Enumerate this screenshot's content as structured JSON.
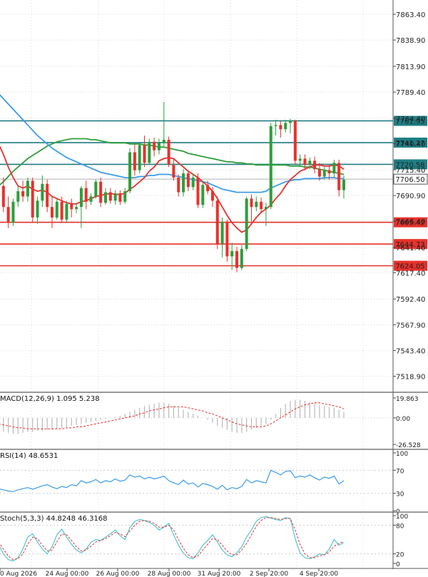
{
  "chart_data": {
    "type": "candlestick",
    "grid": true,
    "colors": {
      "bull": "#2e9e3b",
      "bear": "#e8312b",
      "ma_fast": "#e8312b",
      "ma_mid": "#3a9be8",
      "ma_slow": "#2e9e3b",
      "level_resist": "#1f7d84",
      "level_support": "#e8312b",
      "macd_hist": "#b9b9b9",
      "macd_signal": "#e8312b",
      "rsi": "#3a9be8",
      "stoch_main": "#4fc6d4",
      "stoch_signal": "#e8312b"
    },
    "x_labels": [
      "0 Aug 2026",
      "24 Aug 00:00",
      "26 Aug 00:00",
      "28 Aug 00:00",
      "31 Aug 20:00",
      "2 Sep 20:00",
      "4 Sep 20:00"
    ],
    "price_axis": {
      "ylim": [
        7505,
        7877
      ],
      "ticks": [
        "7863.40",
        "7838.90",
        "7813.90",
        "7789.40",
        "7764.40",
        "7740.40",
        "7715.40",
        "7690.90",
        "7666.40",
        "7641.40",
        "7617.40",
        "7592.40",
        "7567.90",
        "7543.40",
        "7518.90"
      ]
    },
    "price_ticks_values": [
      7863.4,
      7838.9,
      7813.9,
      7789.4,
      7764.4,
      7740.4,
      7715.4,
      7690.9,
      7666.4,
      7641.4,
      7617.4,
      7592.4,
      7567.9,
      7543.4,
      7518.9
    ],
    "levels": [
      {
        "label": "7761.95",
        "value": 7761.95,
        "kind": "resist"
      },
      {
        "label": "7741.27",
        "value": 7741.27,
        "kind": "resist"
      },
      {
        "label": "7720.58",
        "value": 7720.58,
        "kind": "resist"
      },
      {
        "label": "7665.42",
        "value": 7665.42,
        "kind": "support"
      },
      {
        "label": "7644.73",
        "value": 7644.73,
        "kind": "support"
      },
      {
        "label": "7624.05",
        "value": 7624.05,
        "kind": "support"
      }
    ],
    "current_price": {
      "label": "7706.50",
      "value": 7706.5
    },
    "candles": [
      [
        7718,
        7725,
        7695,
        7700
      ],
      [
        7700,
        7708,
        7675,
        7680
      ],
      [
        7680,
        7690,
        7660,
        7665
      ],
      [
        7665,
        7688,
        7662,
        7685
      ],
      [
        7685,
        7700,
        7680,
        7695
      ],
      [
        7695,
        7705,
        7685,
        7690
      ],
      [
        7690,
        7708,
        7685,
        7705
      ],
      [
        7705,
        7708,
        7665,
        7670
      ],
      [
        7670,
        7690,
        7664,
        7686
      ],
      [
        7686,
        7710,
        7680,
        7702
      ],
      [
        7702,
        7706,
        7675,
        7680
      ],
      [
        7680,
        7690,
        7660,
        7670
      ],
      [
        7670,
        7688,
        7668,
        7685
      ],
      [
        7685,
        7690,
        7665,
        7668
      ],
      [
        7668,
        7686,
        7665,
        7683
      ],
      [
        7683,
        7688,
        7670,
        7678
      ],
      [
        7678,
        7684,
        7674,
        7680
      ],
      [
        7680,
        7700,
        7660,
        7698
      ],
      [
        7698,
        7705,
        7678,
        7685
      ],
      [
        7685,
        7693,
        7682,
        7690
      ],
      [
        7690,
        7706,
        7688,
        7704
      ],
      [
        7704,
        7708,
        7680,
        7684
      ],
      [
        7684,
        7698,
        7682,
        7694
      ],
      [
        7694,
        7698,
        7683,
        7686
      ],
      [
        7686,
        7696,
        7682,
        7693
      ],
      [
        7693,
        7696,
        7682,
        7685
      ],
      [
        7685,
        7698,
        7683,
        7695
      ],
      [
        7695,
        7736,
        7693,
        7732
      ],
      [
        7732,
        7740,
        7710,
        7715
      ],
      [
        7715,
        7742,
        7712,
        7739
      ],
      [
        7739,
        7748,
        7718,
        7722
      ],
      [
        7722,
        7745,
        7720,
        7742
      ],
      [
        7742,
        7746,
        7728,
        7734
      ],
      [
        7734,
        7745,
        7730,
        7741
      ],
      [
        7741,
        7780,
        7738,
        7744
      ],
      [
        7744,
        7747,
        7718,
        7720
      ],
      [
        7720,
        7726,
        7705,
        7708
      ],
      [
        7708,
        7711,
        7690,
        7694
      ],
      [
        7694,
        7716,
        7690,
        7712
      ],
      [
        7712,
        7714,
        7695,
        7699
      ],
      [
        7699,
        7712,
        7696,
        7708
      ],
      [
        7708,
        7712,
        7679,
        7682
      ],
      [
        7682,
        7705,
        7679,
        7701
      ],
      [
        7701,
        7705,
        7692,
        7695
      ],
      [
        7695,
        7699,
        7680,
        7686
      ],
      [
        7686,
        7690,
        7640,
        7645
      ],
      [
        7645,
        7670,
        7632,
        7666
      ],
      [
        7666,
        7668,
        7628,
        7633
      ],
      [
        7633,
        7646,
        7620,
        7638
      ],
      [
        7638,
        7642,
        7618,
        7622
      ],
      [
        7622,
        7644,
        7620,
        7640
      ],
      [
        7640,
        7690,
        7638,
        7688
      ],
      [
        7688,
        7692,
        7666,
        7680
      ],
      [
        7680,
        7690,
        7676,
        7685
      ],
      [
        7685,
        7689,
        7674,
        7678
      ],
      [
        7678,
        7684,
        7662,
        7680
      ],
      [
        7680,
        7760,
        7678,
        7757
      ],
      [
        7757,
        7763,
        7748,
        7758
      ],
      [
        7758,
        7762,
        7746,
        7754
      ],
      [
        7754,
        7763,
        7751,
        7760
      ],
      [
        7760,
        7764,
        7750,
        7762
      ],
      [
        7762,
        7763,
        7720,
        7724
      ],
      [
        7724,
        7730,
        7718,
        7726
      ],
      [
        7726,
        7730,
        7715,
        7720
      ],
      [
        7720,
        7727,
        7716,
        7724
      ],
      [
        7724,
        7728,
        7712,
        7716
      ],
      [
        7716,
        7722,
        7705,
        7709
      ],
      [
        7709,
        7718,
        7706,
        7715
      ],
      [
        7715,
        7720,
        7706,
        7712
      ],
      [
        7712,
        7725,
        7708,
        7722
      ],
      [
        7722,
        7725,
        7690,
        7696
      ],
      [
        7696,
        7710,
        7688,
        7706
      ]
    ],
    "ma_fast": [
      7740,
      7730,
      7718,
      7708,
      7700,
      7698,
      7700,
      7697,
      7695,
      7696,
      7694,
      7690,
      7688,
      7686,
      7684,
      7683,
      7683,
      7685,
      7686,
      7688,
      7690,
      7691,
      7692,
      7693,
      7692,
      7692,
      7693,
      7697,
      7700,
      7704,
      7708,
      7714,
      7718,
      7724,
      7726,
      7727,
      7726,
      7722,
      7718,
      7714,
      7711,
      7708,
      7704,
      7700,
      7695,
      7688,
      7680,
      7672,
      7665,
      7660,
      7656,
      7658,
      7664,
      7670,
      7675,
      7678,
      7682,
      7688,
      7693,
      7700,
      7706,
      7710,
      7714,
      7716,
      7718,
      7720,
      7720,
      7719,
      7719,
      7720,
      7719,
      7716
    ],
    "ma_mid": [
      7788,
      7783,
      7778,
      7773,
      7768,
      7763,
      7758,
      7753,
      7748,
      7744,
      7740,
      7736,
      7733,
      7730,
      7727,
      7725,
      7723,
      7721,
      7719,
      7717,
      7715,
      7713,
      7712,
      7711,
      7710,
      7709,
      7708,
      7708,
      7708,
      7709,
      7709,
      7710,
      7710,
      7711,
      7711,
      7711,
      7710,
      7709,
      7708,
      7707,
      7706,
      7705,
      7704,
      7703,
      7701,
      7699,
      7697,
      7696,
      7695,
      7694,
      7694,
      7694,
      7694,
      7694,
      7694,
      7695,
      7698,
      7700,
      7702,
      7704,
      7705,
      7706,
      7706,
      7707,
      7707,
      7707,
      7707,
      7708,
      7708,
      7708,
      7707,
      7707
    ],
    "ma_slow": [
      7700,
      7704,
      7709,
      7714,
      7718,
      7722,
      7726,
      7729,
      7732,
      7735,
      7738,
      7740,
      7742,
      7743,
      7744,
      7745,
      7745,
      7745,
      7745,
      7744,
      7744,
      7743,
      7742,
      7741,
      7741,
      7741,
      7741,
      7740,
      7740,
      7740,
      7739,
      7739,
      7738,
      7737,
      7737,
      7736,
      7735,
      7734,
      7733,
      7731,
      7730,
      7729,
      7728,
      7727,
      7726,
      7725,
      7724,
      7723,
      7723,
      7722,
      7722,
      7721,
      7721,
      7720,
      7720,
      7720,
      7720,
      7720,
      7720,
      7720,
      7719,
      7719,
      7719,
      7718,
      7718,
      7717,
      7716,
      7715,
      7714,
      7713,
      7712,
      7711
    ],
    "macd": {
      "label": "MACD(12,26,9) 1.095 5.238",
      "main": 1.095,
      "signal": [
        -6,
        -7,
        -8,
        -9,
        -10,
        -10,
        -11,
        -11,
        -11,
        -11,
        -11,
        -11,
        -11,
        -11,
        -10,
        -10,
        -9,
        -9,
        -8,
        -7,
        -6,
        -5,
        -4,
        -3,
        -2,
        -1,
        0,
        1,
        2,
        4,
        5,
        7,
        8,
        9,
        10,
        11,
        11,
        11,
        11,
        10,
        9,
        8,
        7,
        5,
        4,
        2,
        0,
        -2,
        -4,
        -6,
        -7,
        -8,
        -9,
        -9,
        -9,
        -8,
        -6,
        -3,
        0,
        3,
        6,
        9,
        11,
        13,
        14,
        15,
        15,
        14,
        13,
        12,
        11,
        9
      ],
      "ticks": [
        "19.863",
        "0.00",
        "-26.528"
      ],
      "ylim": [
        -30,
        22
      ],
      "hist": [
        -12,
        -14,
        -15,
        -16,
        -16,
        -15,
        -14,
        -14,
        -13,
        -13,
        -12,
        -12,
        -11,
        -10,
        -9,
        -8,
        -7,
        -6,
        -5,
        -4,
        -3,
        -2,
        -1,
        0,
        1,
        2,
        4,
        6,
        8,
        10,
        12,
        13,
        14,
        15,
        15,
        14,
        12,
        10,
        8,
        6,
        4,
        2,
        0,
        -2,
        -5,
        -8,
        -10,
        -12,
        -14,
        -15,
        -15,
        -14,
        -12,
        -10,
        -8,
        -6,
        -2,
        4,
        10,
        14,
        17,
        18,
        18,
        17,
        16,
        15,
        13,
        12,
        11,
        10,
        8,
        6
      ]
    },
    "rsi": {
      "label": "RSI(14) 48.6531",
      "value": 48.6531,
      "ticks": [
        "100",
        "70",
        "30",
        "0"
      ],
      "ylim": [
        0,
        100
      ],
      "values": [
        38,
        36,
        34,
        33,
        36,
        38,
        40,
        37,
        40,
        43,
        45,
        41,
        38,
        42,
        40,
        45,
        43,
        52,
        48,
        50,
        54,
        48,
        52,
        50,
        55,
        51,
        53,
        62,
        58,
        60,
        55,
        58,
        55,
        57,
        60,
        52,
        48,
        45,
        53,
        46,
        48,
        41,
        47,
        45,
        42,
        37,
        44,
        36,
        40,
        38,
        42,
        54,
        48,
        52,
        50,
        48,
        70,
        66,
        62,
        68,
        69,
        57,
        60,
        58,
        62,
        57,
        53,
        58,
        56,
        60,
        46,
        52
      ]
    },
    "stoch": {
      "label": "Stoch(5,3,3) 44.8248 46.3168",
      "main": 44.8248,
      "signal": 46.3168,
      "ticks": [
        "100",
        "80",
        "20",
        "0"
      ],
      "ylim": [
        0,
        100
      ],
      "main_values": [
        40,
        20,
        8,
        5,
        12,
        30,
        55,
        62,
        45,
        30,
        20,
        35,
        60,
        72,
        55,
        40,
        28,
        22,
        30,
        44,
        50,
        48,
        55,
        62,
        70,
        58,
        50,
        75,
        88,
        92,
        90,
        86,
        80,
        70,
        76,
        84,
        60,
        38,
        22,
        12,
        10,
        22,
        38,
        48,
        60,
        45,
        28,
        18,
        14,
        22,
        35,
        55,
        70,
        88,
        96,
        98,
        95,
        92,
        90,
        96,
        94,
        52,
        22,
        12,
        10,
        14,
        20,
        18,
        30,
        50,
        38,
        44
      ],
      "signal_values": [
        45,
        30,
        15,
        8,
        10,
        20,
        40,
        55,
        52,
        38,
        26,
        28,
        45,
        62,
        60,
        48,
        35,
        26,
        28,
        36,
        45,
        48,
        52,
        58,
        65,
        62,
        56,
        68,
        80,
        88,
        90,
        88,
        84,
        76,
        76,
        80,
        70,
        50,
        32,
        18,
        12,
        16,
        28,
        40,
        52,
        50,
        38,
        26,
        18,
        18,
        28,
        42,
        60,
        78,
        90,
        96,
        96,
        94,
        92,
        94,
        94,
        70,
        40,
        20,
        12,
        12,
        16,
        18,
        24,
        36,
        42,
        46
      ]
    }
  }
}
